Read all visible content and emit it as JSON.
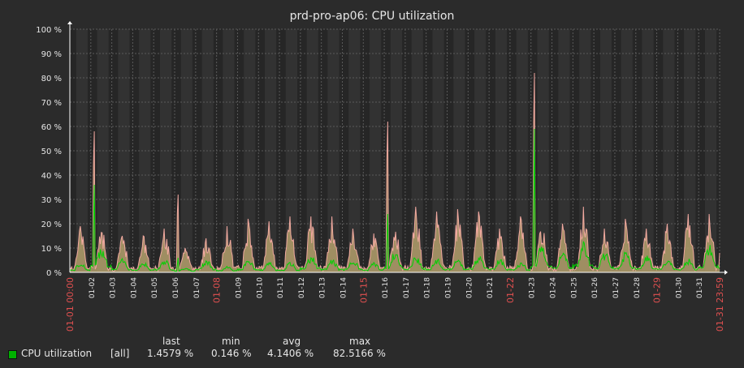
{
  "window_title": "prd-pro-ap06: CPU utilization",
  "legend": {
    "headers": {
      "last": "last",
      "min": "min",
      "avg": "avg",
      "max": "max"
    },
    "item": {
      "name": "CPU utilization",
      "scope": "[all]",
      "last": "1.4579 %",
      "min": "0.146 %",
      "avg": "4.1406 %",
      "max": "82.5166 %"
    }
  },
  "colors": {
    "background": "#2b2b2b",
    "plot_bg": "#323232",
    "weekend_band": "#262626",
    "avg_line": "#00d000",
    "max_fill": "#b39f6b",
    "max_spike": "#ffb0a8",
    "weekend_label": "#e05050",
    "text": "#e6e6e6",
    "grid": "#5a5a5a"
  },
  "chart_data": {
    "type": "line",
    "title": "prd-pro-ap06: CPU utilization",
    "xlabel": "",
    "ylabel": "",
    "ylim": [
      0,
      100
    ],
    "y_ticks": [
      "0 %",
      "10 %",
      "20 %",
      "30 %",
      "40 %",
      "50 %",
      "60 %",
      "70 %",
      "80 %",
      "90 %",
      "100 %"
    ],
    "x_range": [
      "01-01 00:00",
      "01-31 23:59"
    ],
    "x_tick_labels": [
      "01-01 00:00",
      "01-02",
      "01-03",
      "01-04",
      "01-05",
      "01-06",
      "01-07",
      "01-08",
      "01-09",
      "01-10",
      "01-11",
      "01-12",
      "01-13",
      "01-14",
      "01-15",
      "01-16",
      "01-17",
      "01-18",
      "01-19",
      "01-20",
      "01-21",
      "01-22",
      "01-23",
      "01-24",
      "01-25",
      "01-26",
      "01-27",
      "01-28",
      "01-29",
      "01-30",
      "01-31",
      "01-31 23:59"
    ],
    "highlighted_labels": [
      "01-01 00:00",
      "01-08",
      "01-15",
      "01-22",
      "01-29",
      "01-31 23:59"
    ],
    "grid": true,
    "legend_position": "bottom-left",
    "series": [
      {
        "name": "CPU utilization",
        "kind": "avg",
        "color": "#00d000",
        "x": [
          "01-01",
          "01-02",
          "01-03",
          "01-04",
          "01-05",
          "01-06",
          "01-07",
          "01-08",
          "01-09",
          "01-10",
          "01-11",
          "01-12",
          "01-13",
          "01-14",
          "01-15",
          "01-16",
          "01-17",
          "01-18",
          "01-19",
          "01-20",
          "01-21",
          "01-22",
          "01-23",
          "01-24",
          "01-25",
          "01-26",
          "01-27",
          "01-28",
          "01-29",
          "01-30",
          "01-31"
        ],
        "values": [
          3,
          36,
          4,
          3,
          4,
          6,
          4,
          2,
          4,
          3,
          3,
          5,
          4,
          4,
          3,
          24,
          5,
          4,
          4,
          5,
          4,
          3,
          59,
          6,
          9,
          6,
          6,
          5,
          4,
          4,
          8
        ]
      },
      {
        "kind": "max",
        "color": "#ffb0a8",
        "x": [
          "01-01",
          "01-02",
          "01-03",
          "01-04",
          "01-05",
          "01-06",
          "01-07",
          "01-08",
          "01-09",
          "01-10",
          "01-11",
          "01-12",
          "01-13",
          "01-14",
          "01-15",
          "01-16",
          "01-17",
          "01-18",
          "01-19",
          "01-20",
          "01-21",
          "01-22",
          "01-23",
          "01-24",
          "01-25",
          "01-26",
          "01-27",
          "01-28",
          "01-29",
          "01-30",
          "01-31"
        ],
        "values": [
          19,
          58,
          15,
          15,
          18,
          32,
          14,
          19,
          22,
          21,
          23,
          23,
          23,
          18,
          16,
          62,
          27,
          25,
          26,
          25,
          18,
          23,
          82,
          20,
          27,
          18,
          22,
          18,
          20,
          24,
          24
        ]
      }
    ]
  }
}
